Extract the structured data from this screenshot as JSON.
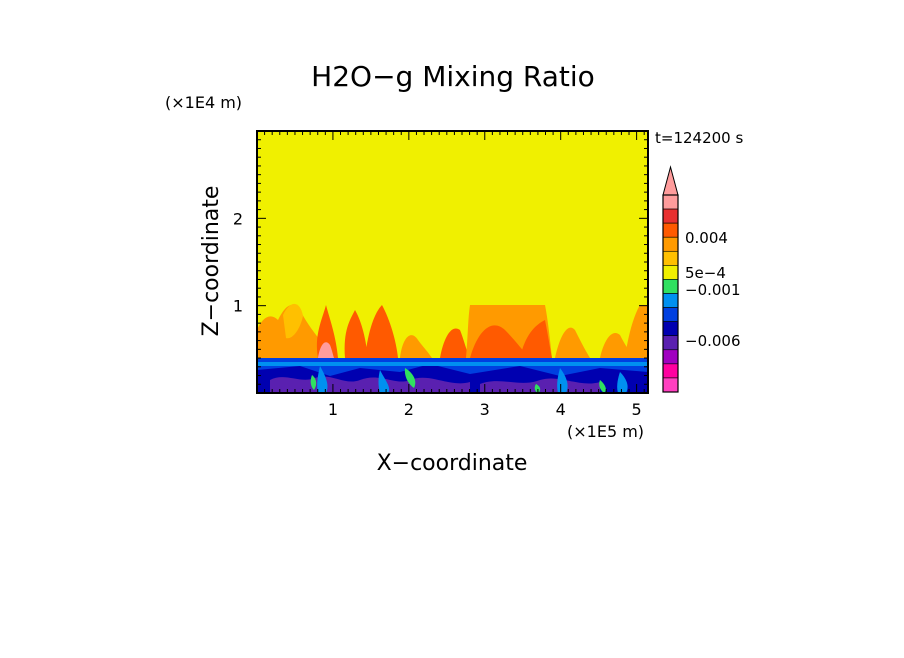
{
  "chart_data": {
    "type": "heatmap",
    "title": "H2O−g Mixing Ratio",
    "xlabel": "X−coordinate",
    "ylabel": "Z−coordinate",
    "x_unit": "(×1E5 m)",
    "y_unit": "(×1E4 m)",
    "time_label": "t=124200 s",
    "xlim": [
      0,
      5.15
    ],
    "ylim": [
      0,
      3.0
    ],
    "x_ticks": [
      "1",
      "2",
      "3",
      "4",
      "5"
    ],
    "y_ticks": [
      "1",
      "2"
    ],
    "x_tick_values": [
      1,
      2,
      3,
      4,
      5
    ],
    "y_tick_values": [
      1,
      2
    ],
    "background_level": 0.0,
    "mixed_layer_top": 0.4,
    "colorbar": {
      "colors": [
        "#f0f000",
        "#f0f000",
        "#ff9c9c",
        "#e83030",
        "#ff5a00",
        "#ff9a00",
        "#ffc000",
        "#f0f000",
        "#30e060",
        "#0090f0",
        "#0040e0",
        "#0000b0",
        "#5a20b0",
        "#a000c0",
        "#ff00a0",
        "#ff40c0"
      ],
      "labels": [
        "0.004",
        "5e−4",
        "−0.001",
        "−0.006"
      ],
      "label_levels": [
        0.004,
        0.0005,
        -0.001,
        -0.006
      ]
    }
  }
}
